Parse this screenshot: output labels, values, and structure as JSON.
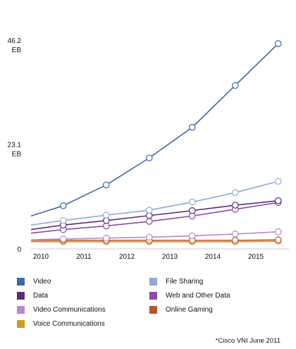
{
  "chart_data": {
    "type": "line",
    "x_categories": [
      "2010",
      "2011",
      "2012",
      "2013",
      "2014",
      "2015"
    ],
    "y_ticks": [
      {
        "value": 46.2,
        "line1": "46.2",
        "line2": "EB"
      },
      {
        "value": 23.1,
        "line1": "23.1",
        "line2": "EB"
      },
      {
        "value": 0,
        "line1": "0",
        "line2": ""
      }
    ],
    "ylim": [
      0,
      46.2
    ],
    "x_points": [
      2010.75,
      2011.75,
      2012.75,
      2013.75,
      2014.75,
      2015.75
    ],
    "xlim": [
      2010.0,
      2016.0
    ],
    "series": [
      {
        "name": "Video",
        "color": "#3e68ab",
        "line_start": 7.3,
        "values": [
          9.6,
          14.2,
          20.2,
          27.0,
          36.3,
          45.6
        ]
      },
      {
        "name": "File Sharing",
        "color": "#8eaad6",
        "line_start": 5.3,
        "values": [
          6.3,
          7.5,
          8.6,
          10.4,
          12.5,
          15.0
        ]
      },
      {
        "name": "Data",
        "color": "#5e2d7a",
        "line_start": 4.3,
        "values": [
          5.3,
          6.3,
          7.4,
          8.5,
          9.7,
          10.7
        ]
      },
      {
        "name": "Web and Other Data",
        "color": "#8e4aa6",
        "line_start": 3.5,
        "values": [
          4.3,
          5.1,
          6.1,
          7.3,
          8.8,
          10.3
        ]
      },
      {
        "name": "Video Communications",
        "color": "#b58ad0",
        "line_start": 2.0,
        "values": [
          2.2,
          2.4,
          2.6,
          2.9,
          3.3,
          3.8
        ]
      },
      {
        "name": "Online Gaming",
        "color": "#c0501f",
        "line_start": 1.9,
        "values": [
          1.9,
          1.9,
          1.9,
          1.9,
          1.9,
          2.0
        ]
      },
      {
        "name": "Voice Communications",
        "color": "#d19a1a",
        "line_start": 1.6,
        "values": [
          1.6,
          1.6,
          1.6,
          1.6,
          1.6,
          1.7
        ]
      }
    ],
    "legend_position": "bottom",
    "grid": false
  },
  "legend": [
    {
      "label": "Video",
      "color": "#3e68ab"
    },
    {
      "label": "File Sharing",
      "color": "#8eaad6"
    },
    {
      "label": "Data",
      "color": "#5e2d7a"
    },
    {
      "label": "Web and Other Data",
      "color": "#8e4aa6"
    },
    {
      "label": "Video Communications",
      "color": "#b58ad0"
    },
    {
      "label": "Online Gaming",
      "color": "#c0501f"
    },
    {
      "label": "Voice Communications",
      "color": "#d19a1a"
    }
  ],
  "source": "*Cisco VNI June 2011"
}
